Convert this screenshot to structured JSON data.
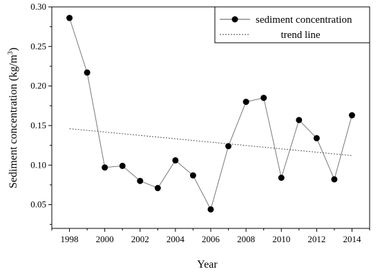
{
  "chart_data": {
    "type": "line",
    "title": "",
    "xlabel": "Year",
    "ylabel_main": "Sediment concentration (kg/m",
    "ylabel_sup": "3",
    "ylabel_end": ")",
    "xlim": [
      1997,
      2015
    ],
    "ylim": [
      0.02,
      0.3
    ],
    "x_ticks": [
      1998,
      2000,
      2002,
      2004,
      2006,
      2008,
      2010,
      2012,
      2014
    ],
    "y_ticks": [
      0.05,
      0.1,
      0.15,
      0.2,
      0.25,
      0.3
    ],
    "y_tick_labels": [
      "0.05",
      "0.10",
      "0.15",
      "0.20",
      "0.25",
      "0.30"
    ],
    "grid": false,
    "legend_position": "top-right",
    "series": [
      {
        "name": "sediment concentration",
        "style": "line-with-markers",
        "color": "#000000",
        "x": [
          1998,
          1999,
          2000,
          2001,
          2002,
          2003,
          2004,
          2005,
          2006,
          2007,
          2008,
          2009,
          2010,
          2011,
          2012,
          2013,
          2014
        ],
        "values": [
          0.286,
          0.217,
          0.097,
          0.099,
          0.08,
          0.071,
          0.106,
          0.087,
          0.044,
          0.124,
          0.18,
          0.185,
          0.084,
          0.157,
          0.134,
          0.082,
          0.163
        ]
      },
      {
        "name": "trend line",
        "style": "dotted",
        "color": "#444444",
        "x": [
          1998,
          2014
        ],
        "values": [
          0.146,
          0.112
        ]
      }
    ]
  }
}
